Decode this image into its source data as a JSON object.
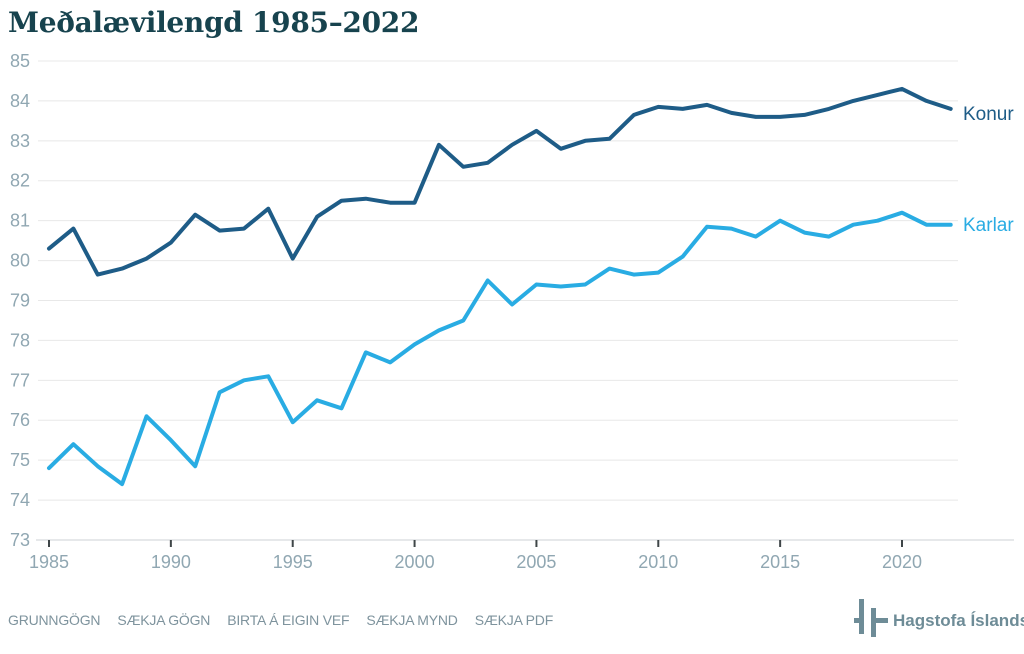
{
  "title": "Meðalævilengd 1985–2022",
  "chart_data": {
    "type": "line",
    "title": "Meðalævilengd 1985–2022",
    "xlabel": "",
    "ylabel": "",
    "x": [
      1985,
      1986,
      1987,
      1988,
      1989,
      1990,
      1991,
      1992,
      1993,
      1994,
      1995,
      1996,
      1997,
      1998,
      1999,
      2000,
      2001,
      2002,
      2003,
      2004,
      2005,
      2006,
      2007,
      2008,
      2009,
      2010,
      2011,
      2012,
      2013,
      2014,
      2015,
      2016,
      2017,
      2018,
      2019,
      2020,
      2021,
      2022
    ],
    "x_ticks": [
      1985,
      1990,
      1995,
      2000,
      2005,
      2010,
      2015,
      2020
    ],
    "y_ticks": [
      73,
      74,
      75,
      76,
      77,
      78,
      79,
      80,
      81,
      82,
      83,
      84,
      85
    ],
    "ylim": [
      73,
      85
    ],
    "grid": "horizontal",
    "legend_position": "line-end-labels-right",
    "series": [
      {
        "name": "Konur",
        "color": "#1E5C87",
        "values": [
          80.3,
          80.8,
          79.65,
          79.8,
          80.05,
          80.45,
          81.15,
          80.75,
          80.8,
          81.3,
          80.05,
          81.1,
          81.5,
          81.55,
          81.45,
          81.45,
          82.9,
          82.35,
          82.45,
          82.9,
          83.25,
          82.8,
          83.0,
          83.05,
          83.65,
          83.85,
          83.8,
          83.9,
          83.7,
          83.6,
          83.6,
          83.65,
          83.8,
          84.0,
          84.15,
          84.3,
          84.0,
          83.8
        ]
      },
      {
        "name": "Karlar",
        "color": "#29ACE3",
        "values": [
          74.8,
          75.4,
          74.85,
          74.4,
          76.1,
          75.5,
          74.85,
          76.7,
          77.0,
          77.1,
          75.95,
          76.5,
          76.3,
          77.7,
          77.45,
          77.9,
          78.25,
          78.5,
          79.5,
          78.9,
          79.4,
          79.35,
          79.4,
          79.8,
          79.65,
          79.7,
          80.1,
          80.85,
          80.8,
          80.6,
          81.0,
          80.7,
          80.6,
          80.9,
          81.0,
          81.2,
          80.9,
          80.9
        ]
      }
    ]
  },
  "footer": {
    "links": [
      {
        "label": "GRUNNGÖGN"
      },
      {
        "label": "SÆKJA GÖGN"
      },
      {
        "label": "BIRTA Á EIGIN VEF"
      },
      {
        "label": "SÆKJA MYND"
      },
      {
        "label": "SÆKJA PDF"
      }
    ],
    "brand": {
      "name": "Hagstofa Íslands"
    }
  },
  "colors": {
    "title_text": "#17434E",
    "axis_labels": "#90A7B2",
    "gridline": "#E8E8E8",
    "axis_line": "#CDD2D5",
    "tick_mark": "#3F4648",
    "brand_gray": "#6E8C97",
    "footer_link": "#7E939D"
  }
}
